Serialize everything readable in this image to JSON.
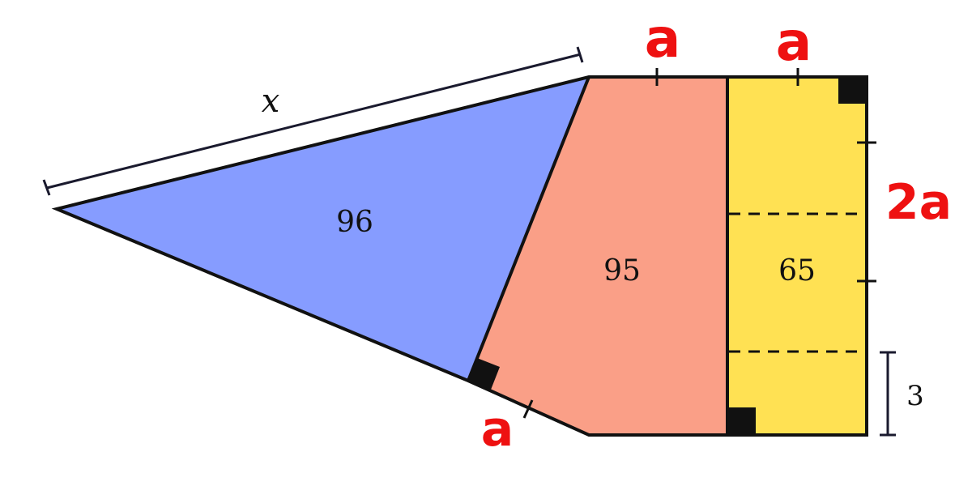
{
  "figure": {
    "regions": {
      "triangle": {
        "area": "96",
        "color": "#869CFF"
      },
      "trapezoid": {
        "area": "95",
        "color": "#FA9F87"
      },
      "rectangle": {
        "area": "65",
        "color": "#FFE153"
      }
    },
    "labels": {
      "hypotenuse": "x",
      "top_left_segment": "a",
      "top_right_segment": "a",
      "right_side": "2a",
      "bottom_slant_segment": "a",
      "strip_height": "3"
    },
    "colors": {
      "outline": "#111111",
      "annotation": "#EE1111"
    },
    "icons": [
      "right-angle-marker",
      "tick-mark",
      "dimension-bar"
    ]
  }
}
